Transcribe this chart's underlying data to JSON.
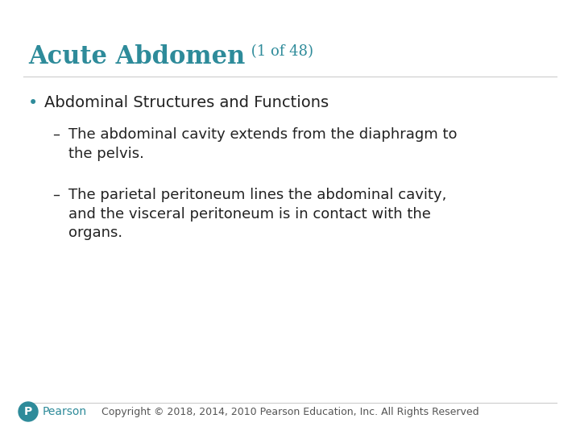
{
  "title_main": "Acute Abdomen",
  "title_sub": " (1 of 48)",
  "title_color": "#2E8B9A",
  "title_main_fontsize": 22,
  "title_sub_fontsize": 13,
  "background_color": "#FFFFFF",
  "bullet_color": "#2E8B9A",
  "text_color": "#222222",
  "bullet_text": "Abdominal Structures and Functions",
  "bullet_fontsize": 14,
  "sub_bullet_fontsize": 13,
  "sub_bullets": [
    "The abdominal cavity extends from the diaphragm to\nthe pelvis.",
    "The parietal peritoneum lines the abdominal cavity,\nand the visceral peritoneum is in contact with the\norgans."
  ],
  "footer_text": "Copyright © 2018, 2014, 2010 Pearson Education, Inc. All Rights Reserved",
  "footer_fontsize": 9,
  "footer_color": "#555555",
  "pearson_color": "#2E8B9A",
  "pearson_text": "Pearson",
  "pearson_fontsize": 10,
  "line_color": "#cccccc"
}
